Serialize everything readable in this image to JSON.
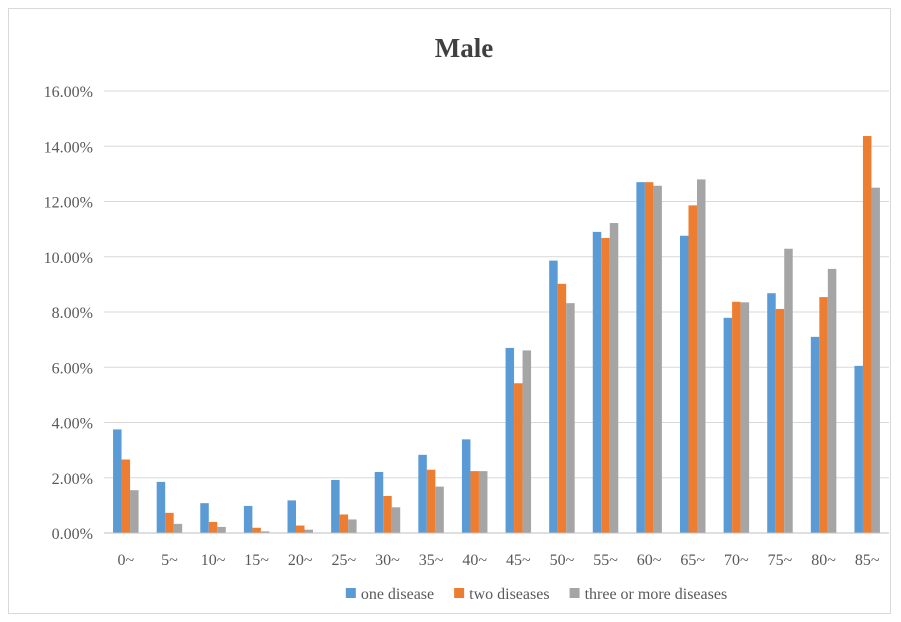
{
  "chart_data": {
    "type": "bar",
    "title": "Male",
    "xlabel": "",
    "ylabel": "",
    "ylim": [
      0,
      16
    ],
    "y_tick_values": [
      0,
      2,
      4,
      6,
      8,
      10,
      12,
      14,
      16
    ],
    "y_tick_labels": [
      "0.00%",
      "2.00%",
      "4.00%",
      "6.00%",
      "8.00%",
      "10.00%",
      "12.00%",
      "14.00%",
      "16.00%"
    ],
    "grid": true,
    "legend_position": "bottom",
    "categories": [
      "0~",
      "5~",
      "10~",
      "15~",
      "20~",
      "25~",
      "30~",
      "35~",
      "40~",
      "45~",
      "50~",
      "55~",
      "60~",
      "65~",
      "70~",
      "75~",
      "80~",
      "85~"
    ],
    "series": [
      {
        "name": "one disease",
        "color": "#5b9bd5",
        "values": [
          3.75,
          1.85,
          1.08,
          0.98,
          1.18,
          1.92,
          2.21,
          2.83,
          3.39,
          6.7,
          9.86,
          10.9,
          12.7,
          10.76,
          7.79,
          8.68,
          7.1,
          6.05
        ]
      },
      {
        "name": "two diseases",
        "color": "#ed7d31",
        "values": [
          2.66,
          0.73,
          0.4,
          0.19,
          0.27,
          0.67,
          1.34,
          2.29,
          2.24,
          5.42,
          9.02,
          10.68,
          12.7,
          11.86,
          8.37,
          8.11,
          8.54,
          14.37
        ]
      },
      {
        "name": "three or more diseases",
        "color": "#a5a5a5",
        "values": [
          1.55,
          0.33,
          0.22,
          0.06,
          0.12,
          0.49,
          0.93,
          1.68,
          2.24,
          6.61,
          8.32,
          11.22,
          12.57,
          12.8,
          8.35,
          10.29,
          9.56,
          12.5
        ]
      }
    ]
  }
}
